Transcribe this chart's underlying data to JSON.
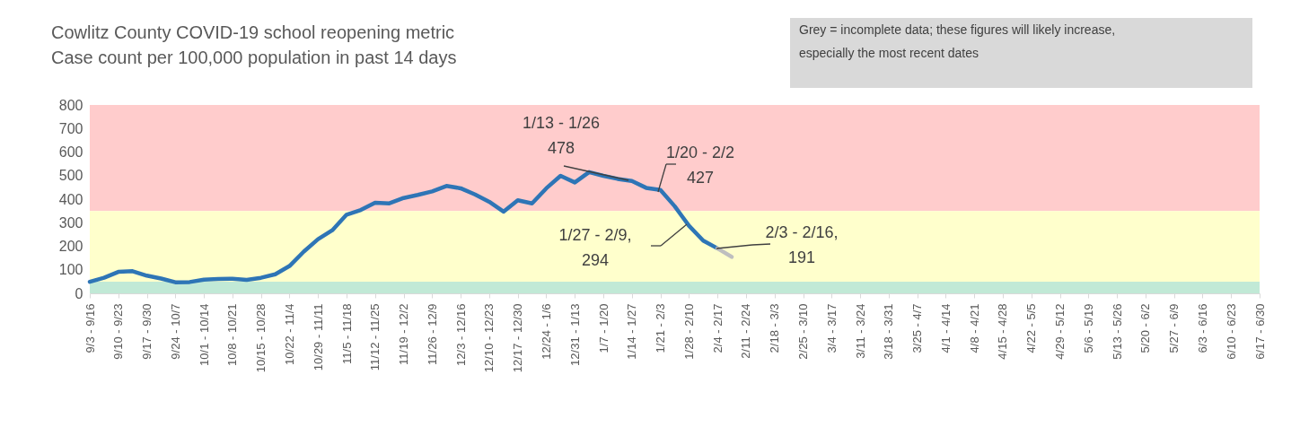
{
  "chart_data": {
    "type": "line",
    "title": "Cowlitz County COVID-19 school reopening metric",
    "subtitle": "Case count per 100,000 population in past 14 days",
    "annotations": [
      "Grey = incomplete data; these figures will likely increase,\nespecially the most recent dates",
      {
        "text": "1/13 - 1/26\n478",
        "y": 478
      },
      "1/20 - 2/2\n427",
      "1/27 - 2/9,\n294",
      "2/3 - 2/16,\n191"
    ],
    "categories": [
      "9/3 - 9/16",
      null,
      "9/10 - 9/23",
      null,
      "9/17 - 9/30",
      null,
      "9/24 - 10/7",
      null,
      "10/1 - 10/14",
      null,
      "10/8 - 10/21",
      null,
      "10/15 - 10/28",
      null,
      "10/22 - 11/4",
      null,
      "10/29 - 11/11",
      null,
      "11/5 - 11/18",
      null,
      "11/12 - 11/25",
      null,
      "11/19 - 12/2",
      null,
      "11/26 - 12/9",
      null,
      "12/3 - 12/16",
      null,
      "12/10 - 12/23",
      null,
      "12/17 - 12/30",
      null,
      "12/24 - 1/6",
      null,
      "12/31 - 1/13",
      null,
      "1/7 - 1/20",
      null,
      "1/14 - 1/27",
      null,
      "1/21 - 2/3",
      null,
      "1/28 - 2/10",
      null,
      "2/4 - 2/17",
      null,
      "2/11 - 2/24",
      null,
      "2/18 - 3/3",
      null,
      "2/25 - 3/10",
      null,
      "3/4 - 3/17",
      null,
      "3/11 - 3/24",
      null,
      "3/18 - 3/31",
      null,
      "3/25 - 4/7",
      null,
      "4/1 - 4/14",
      null,
      "4/8 - 4/21",
      null,
      "4/15 - 4/28",
      null,
      "4/22 - 5/5",
      null,
      "4/29 - 5/12",
      null,
      "5/6 - 5/19",
      null,
      "5/13 - 5/26",
      null,
      "5/20 - 6/2",
      null,
      "5/27 - 6/9",
      null,
      "6/3 - 6/16",
      null,
      "6/10 - 6/23",
      null,
      "6/17 - 6/30"
    ],
    "series": [
      {
        "color": "#2e75b6",
        "values": [
          49,
          66,
          91,
          94,
          75,
          63,
          47,
          48,
          58,
          61,
          62,
          57,
          66,
          81,
          116,
          177,
          230,
          268,
          334,
          354,
          385,
          382,
          405,
          418,
          433,
          456,
          446,
          420,
          389,
          347,
          395,
          382,
          446,
          499,
          471,
          515,
          499,
          486,
          477,
          448,
          439,
          370,
          287,
          224,
          191,
          null,
          null,
          null,
          null,
          null,
          null,
          null,
          null,
          null,
          null,
          null,
          null,
          null,
          null,
          null,
          null,
          null,
          null,
          null,
          null,
          null,
          null,
          null,
          null,
          null,
          null,
          null,
          null,
          null,
          null,
          null,
          null,
          null,
          null,
          null,
          null,
          null,
          null
        ]
      },
      {
        "color": "#bfbfbf",
        "values": [
          null,
          null,
          null,
          null,
          null,
          null,
          null,
          null,
          null,
          null,
          null,
          null,
          null,
          null,
          null,
          null,
          null,
          null,
          null,
          null,
          null,
          null,
          null,
          null,
          null,
          null,
          null,
          null,
          null,
          null,
          null,
          null,
          null,
          null,
          null,
          null,
          null,
          null,
          null,
          null,
          null,
          null,
          null,
          null,
          191,
          155,
          null,
          null,
          null,
          null,
          null,
          null,
          null,
          null,
          null,
          null,
          null,
          null,
          null,
          null,
          null,
          null,
          null,
          null,
          null,
          null,
          null,
          null,
          null,
          null,
          null,
          null,
          null,
          null,
          null,
          null,
          null,
          null,
          null,
          null,
          null,
          null,
          null
        ]
      }
    ],
    "ylim": [
      0,
      800
    ],
    "yticks": [
      0,
      100,
      200,
      300,
      400,
      500,
      600,
      700,
      800
    ],
    "bands": [
      {
        "axis": "y",
        "from": 350,
        "to": 800,
        "color": "#ffcccc"
      },
      {
        "axis": "y",
        "from": 50,
        "to": 350,
        "color": "#ffffcc"
      },
      {
        "axis": "y",
        "from": 0,
        "to": 50,
        "color": "#c1e9d6"
      }
    ]
  }
}
